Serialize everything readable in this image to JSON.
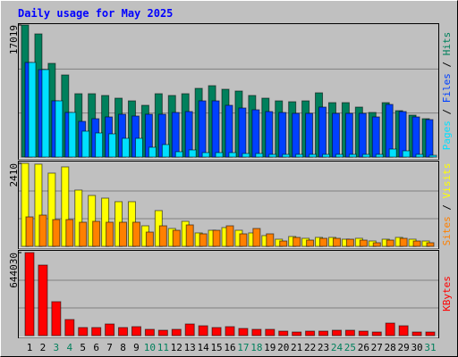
{
  "chart_data": {
    "type": "bar",
    "title": "Daily usage for May 2025",
    "categories": [
      "1",
      "2",
      "3",
      "4",
      "5",
      "6",
      "7",
      "8",
      "9",
      "10",
      "11",
      "12",
      "13",
      "14",
      "15",
      "16",
      "17",
      "18",
      "19",
      "20",
      "21",
      "22",
      "23",
      "24",
      "25",
      "26",
      "27",
      "28",
      "29",
      "30",
      "31"
    ],
    "category_colors": [
      "#000000",
      "#000000",
      "#00805c",
      "#00805c",
      "#000000",
      "#000000",
      "#000000",
      "#000000",
      "#000000",
      "#00805c",
      "#00805c",
      "#000000",
      "#000000",
      "#000000",
      "#000000",
      "#000000",
      "#00805c",
      "#00805c",
      "#000000",
      "#000000",
      "#000000",
      "#000000",
      "#000000",
      "#00805c",
      "#00805c",
      "#000000",
      "#000000",
      "#000000",
      "#000000",
      "#000000",
      "#00805c"
    ],
    "legend_separator": "/",
    "panels": [
      {
        "ylim": [
          0,
          17019
        ],
        "yticks": [
          17019
        ],
        "series": [
          {
            "name": "Hits",
            "color": "#00805c",
            "values": [
              17019,
              15870,
              12075,
              10580,
              8165,
              8165,
              7935,
              7590,
              7245,
              6670,
              8165,
              7935,
              8165,
              8855,
              9200,
              8740,
              8510,
              7935,
              7590,
              7245,
              7130,
              7245,
              8280,
              7015,
              7015,
              6440,
              5750,
              7015,
              5980,
              5405,
              4945
            ]
          },
          {
            "name": "Files",
            "color": "#0040ff",
            "values": [
              12190,
              11270,
              7245,
              5750,
              4600,
              4945,
              5175,
              5520,
              5290,
              5520,
              5520,
              5750,
              5865,
              7245,
              7245,
              6670,
              6325,
              6095,
              5865,
              5750,
              5635,
              5635,
              6440,
              5635,
              5635,
              5635,
              5175,
              6785,
              5865,
              5175,
              4830
            ]
          },
          {
            "name": "Pages",
            "color": "#00e0ff",
            "values": [
              12190,
              11270,
              7245,
              5750,
              3335,
              3105,
              2990,
              2415,
              2415,
              1265,
              1610,
              690,
              920,
              575,
              575,
              575,
              460,
              460,
              345,
              345,
              345,
              345,
              345,
              345,
              345,
              345,
              345,
              1035,
              805,
              345,
              230
            ]
          }
        ]
      },
      {
        "ylim": [
          0,
          2410
        ],
        "yticks": [
          2410
        ],
        "series": [
          {
            "name": "Visits",
            "color": "#ffff00",
            "values": [
              2410,
              2385,
              2125,
              2306,
              1633,
              1477,
              1399,
              1296,
              1296,
              596,
              1037,
              518,
              726,
              389,
              466,
              544,
              466,
              389,
              311,
              207,
              285,
              233,
              259,
              259,
              207,
              233,
              155,
              207,
              259,
              207,
              155
            ]
          },
          {
            "name": "Sites",
            "color": "#ff8000",
            "values": [
              855,
              907,
              777,
              777,
              700,
              726,
              700,
              700,
              700,
              414,
              596,
              466,
              622,
              363,
              466,
              596,
              363,
              518,
              363,
              155,
              259,
              181,
              233,
              233,
              207,
              181,
              104,
              181,
              233,
              155,
              104
            ]
          }
        ]
      },
      {
        "ylim": [
          0,
          644030
        ],
        "yticks": [
          644030
        ],
        "series": [
          {
            "name": "KBytes",
            "color": "#ff0000",
            "values": [
              644030,
              547075,
              263150,
              124650,
              62325,
              62325,
              90025,
              62325,
              69250,
              48475,
              41550,
              48475,
              90025,
              76175,
              62325,
              69250,
              55400,
              48475,
              48475,
              34625,
              27700,
              34625,
              34625,
              41550,
              41550,
              34625,
              27700,
              96950,
              76175,
              27700,
              27700
            ]
          }
        ]
      }
    ]
  }
}
